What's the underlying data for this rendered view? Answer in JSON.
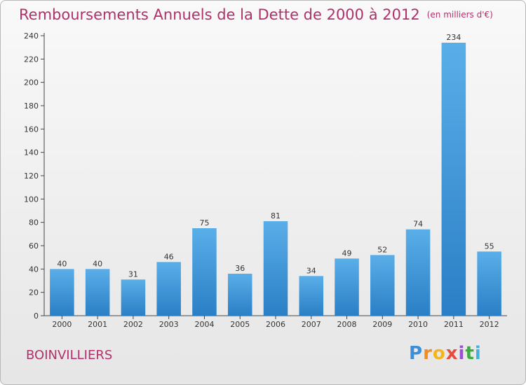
{
  "header": {
    "title": "Remboursements Annuels de la Dette de 2000 à 2012",
    "unit": "(en milliers d'€)"
  },
  "commune": "BOINVILLIERS",
  "logo": {
    "letters": [
      "P",
      "r",
      "o",
      "x",
      "i",
      "t",
      "i"
    ],
    "colors": [
      "#3a8fd8",
      "#f28c1e",
      "#f2b51e",
      "#e84a3c",
      "#9c4fd1",
      "#3fa843",
      "#3fb3e0"
    ]
  },
  "colors": {
    "bar_light": "#5aaee8",
    "bar_dark": "#2a7fc6",
    "title": "#b0306a"
  },
  "chart_data": {
    "type": "bar",
    "categories": [
      "2000",
      "2001",
      "2002",
      "2003",
      "2004",
      "2005",
      "2006",
      "2007",
      "2008",
      "2009",
      "2010",
      "2011",
      "2012"
    ],
    "values": [
      40,
      40,
      31,
      46,
      75,
      36,
      81,
      34,
      49,
      52,
      74,
      234,
      55
    ],
    "ylim": [
      0,
      240
    ],
    "yticks": [
      0,
      20,
      40,
      60,
      80,
      100,
      120,
      140,
      160,
      180,
      200,
      220,
      240
    ],
    "grid": false,
    "data_labels": true
  }
}
